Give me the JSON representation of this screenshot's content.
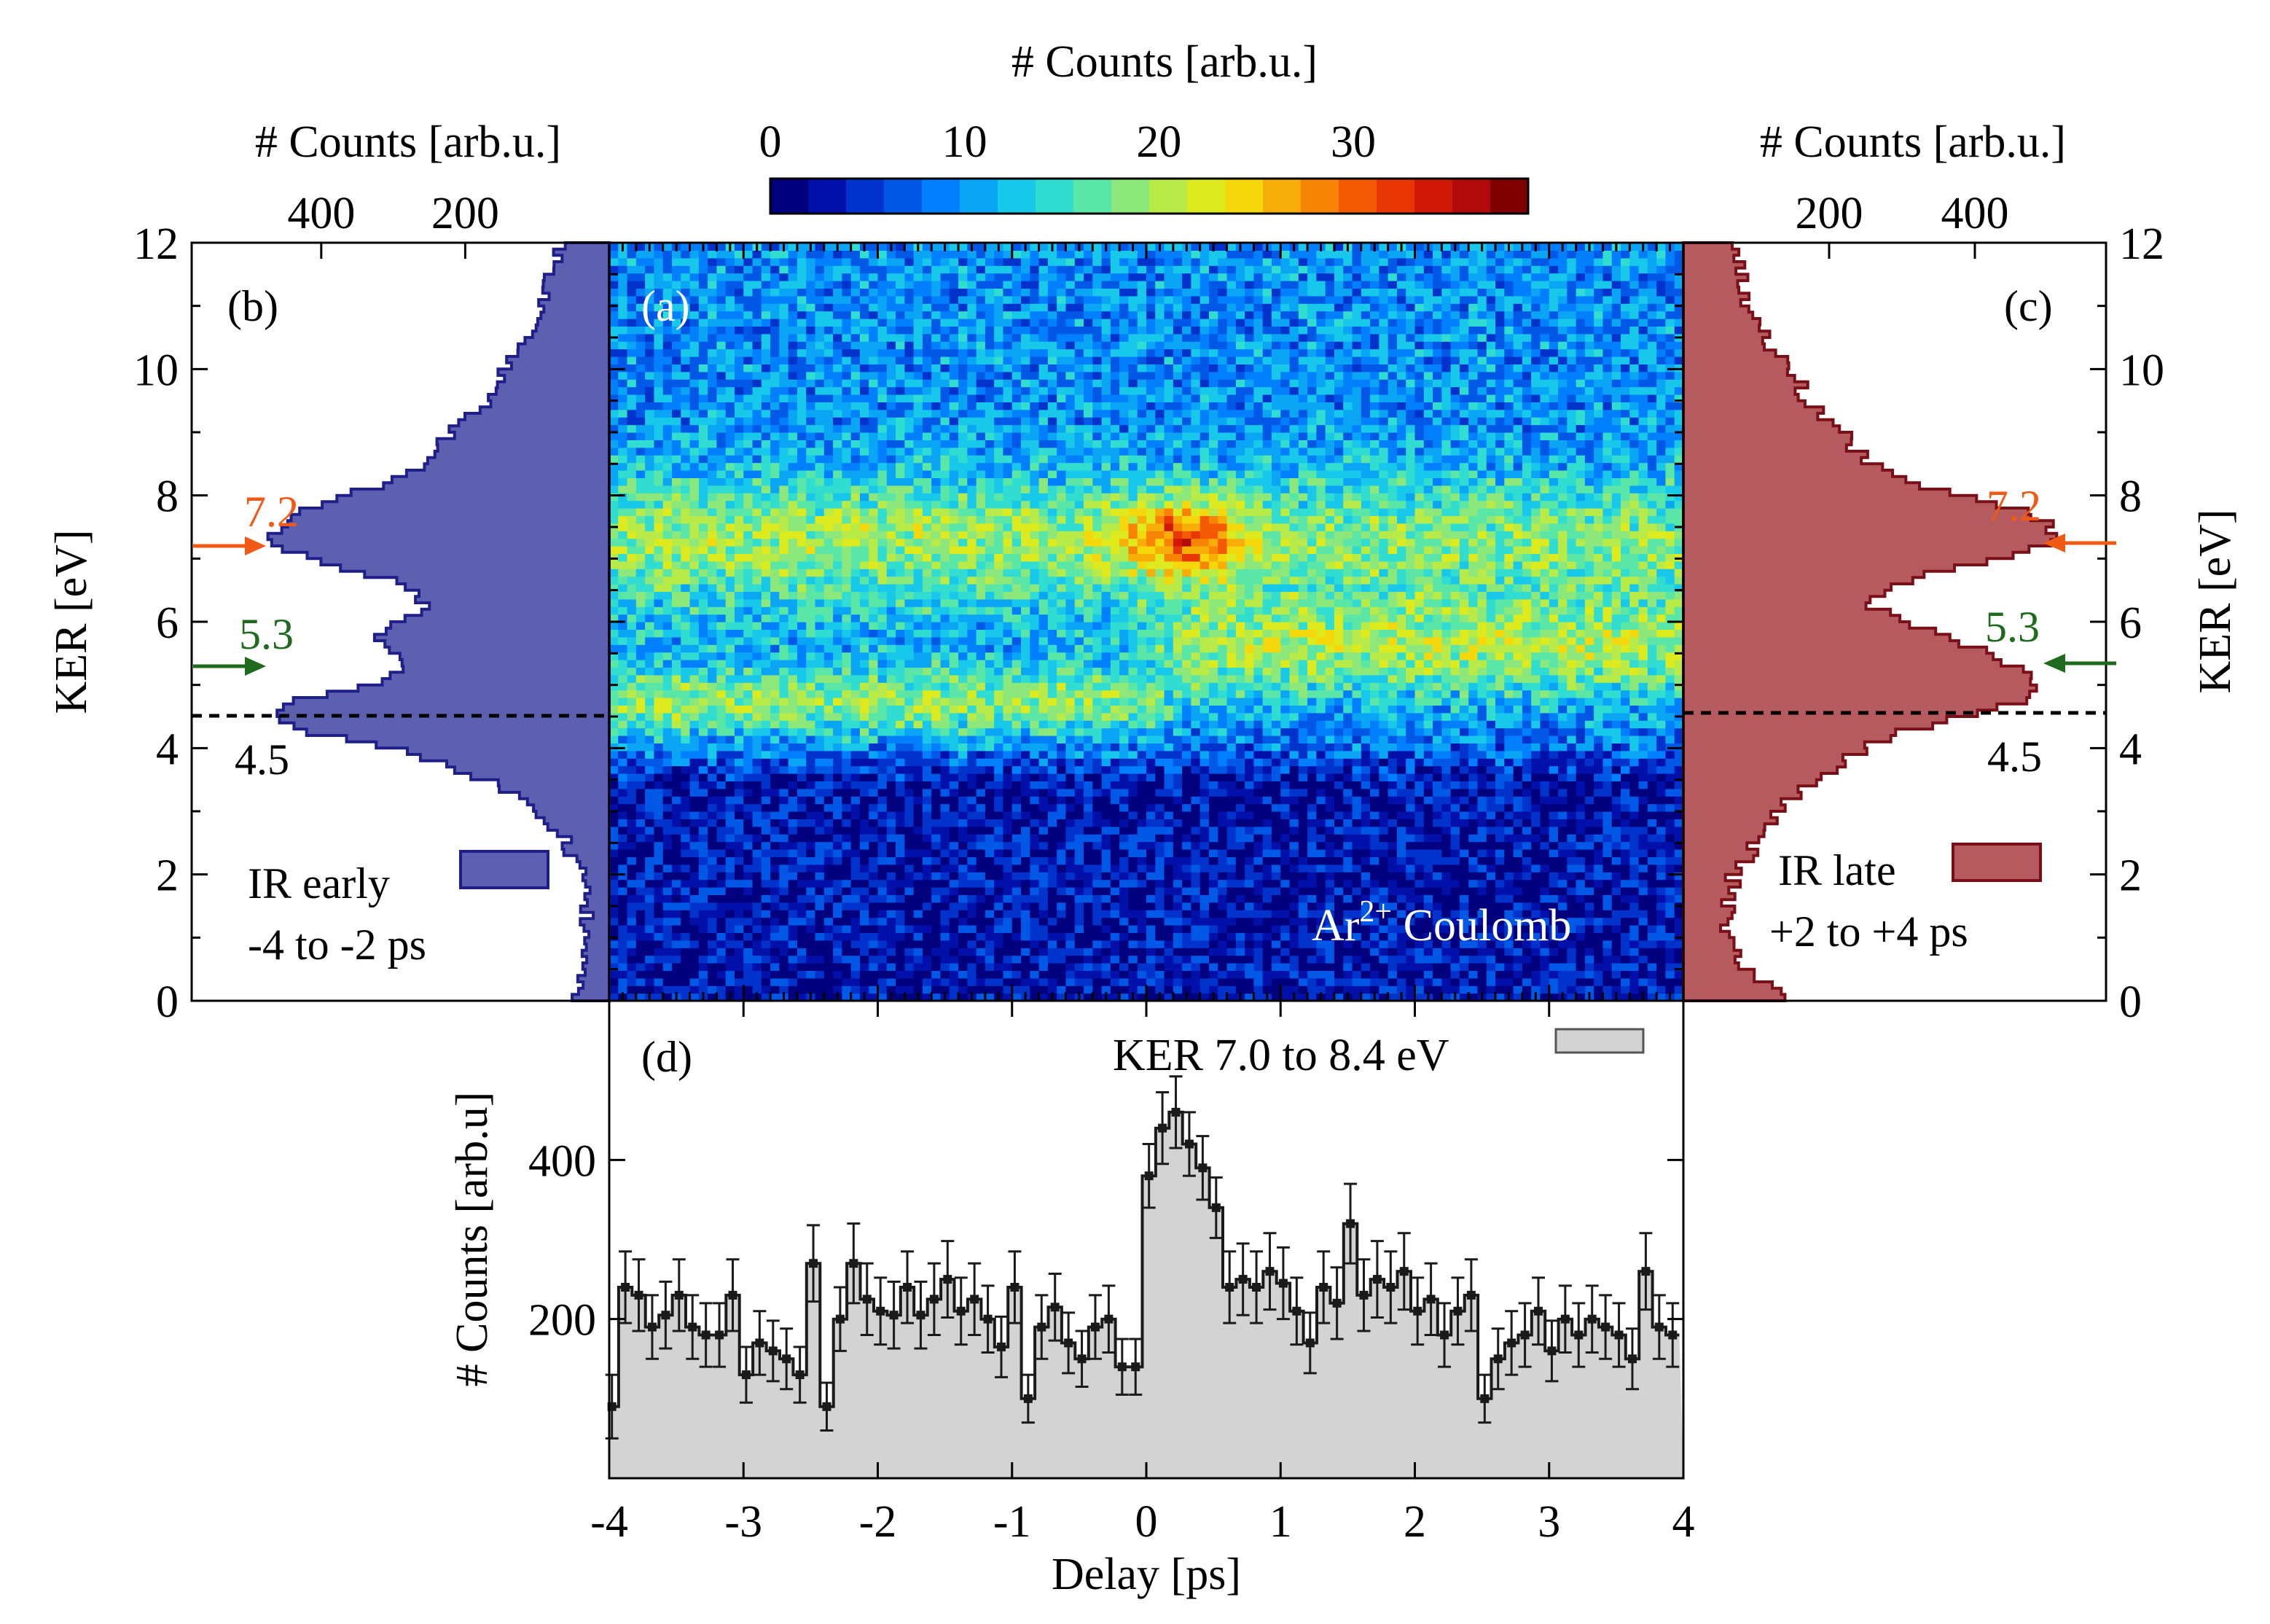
{
  "colors": {
    "early_fill": "#5d5fb0",
    "early_edge": "#1f1f8a",
    "late_fill": "#b55a5e",
    "late_edge": "#7a0f17",
    "marker_72": "#f05a14",
    "marker_53": "#1e6b1e",
    "lineout_fill": "#d3d3d3",
    "points": "#1a1a1a"
  },
  "colormap": [
    "#00007f",
    "#0010a8",
    "#0032cc",
    "#0058e6",
    "#0080ff",
    "#0aa6f5",
    "#18c8ea",
    "#30ddd0",
    "#5ae6a6",
    "#8ce87a",
    "#b8ea48",
    "#dcea1e",
    "#f4d80c",
    "#f8ae08",
    "#f88406",
    "#f45a04",
    "#e83604",
    "#d01806",
    "#b00a0a",
    "#7f0000"
  ],
  "colorbar": {
    "label": "# Counts [arb.u.]",
    "ticks": [
      "0",
      "10",
      "20",
      "30"
    ],
    "tick_values": [
      0,
      10,
      20,
      30
    ],
    "range": [
      0,
      39
    ]
  },
  "panel_a": {
    "label": "(a)",
    "annotation_prefix": "Ar",
    "annotation_sup": "2+",
    "annotation_suffix": " Coulomb",
    "x_range": [
      -4,
      4
    ],
    "y_range": [
      0,
      12
    ]
  },
  "panel_b": {
    "label": "(b)",
    "top_axis_label": "# Counts [arb.u.]",
    "top_ticks": [
      "400",
      "200"
    ],
    "top_tick_values": [
      400,
      200
    ],
    "y_label": "KER [eV]",
    "y_ticks": [
      "0",
      "2",
      "4",
      "6",
      "8",
      "10",
      "12"
    ],
    "legend_line1": "IR early",
    "legend_line2": "-4 to -2 ps",
    "marker_72": "7.2",
    "marker_53": "5.3",
    "marker_45": "4.5"
  },
  "panel_c": {
    "label": "(c)",
    "top_axis_label": "# Counts [arb.u.]",
    "top_ticks": [
      "200",
      "400"
    ],
    "top_tick_values": [
      200,
      400
    ],
    "y_label": "KER [eV]",
    "y_ticks": [
      "0",
      "2",
      "4",
      "6",
      "8",
      "10",
      "12"
    ],
    "legend_line1": "IR late",
    "legend_line2": "+2 to +4 ps",
    "marker_72": "7.2",
    "marker_53": "5.3",
    "marker_45": "4.5"
  },
  "panel_d": {
    "label": "(d)",
    "legend": "KER 7.0 to 8.4 eV",
    "x_label": "Delay [ps]",
    "y_label": "# Counts [arb.u]",
    "x_ticks": [
      "-4",
      "-3",
      "-2",
      "-1",
      "0",
      "1",
      "2",
      "3",
      "4"
    ],
    "y_ticks": [
      "200",
      "400"
    ],
    "y_tick_values": [
      200,
      400
    ]
  },
  "chart_data": [
    {
      "type": "heatmap",
      "panel": "(a)",
      "x_range": [
        -4,
        4
      ],
      "y_range": [
        0,
        12
      ],
      "value_range": [
        0,
        39
      ],
      "description_note": "KER vs delay map; bands at ~7.2 eV and ~5.3 eV, enhanced near 0.2 ps at 7.2 eV"
    },
    {
      "type": "area",
      "panel": "(b)",
      "series_name": "IR early",
      "x_label": "KER [eV]",
      "ker": [
        0,
        0.5,
        1,
        1.5,
        2,
        2.5,
        3,
        3.5,
        4,
        4.25,
        4.5,
        4.75,
        5,
        5.25,
        5.5,
        5.75,
        6,
        6.25,
        6.5,
        6.75,
        7,
        7.25,
        7.5,
        7.75,
        8,
        8.25,
        8.5,
        8.75,
        9,
        9.25,
        9.5,
        10,
        10.5,
        11,
        11.5,
        12
      ],
      "counts": [
        60,
        30,
        28,
        30,
        40,
        60,
        100,
        170,
        300,
        420,
        460,
        440,
        330,
        290,
        300,
        320,
        290,
        250,
        270,
        330,
        420,
        470,
        460,
        430,
        360,
        300,
        250,
        240,
        220,
        190,
        170,
        150,
        110,
        90,
        80,
        70
      ],
      "xlim": [
        0,
        580
      ]
    },
    {
      "type": "area",
      "panel": "(c)",
      "series_name": "IR late",
      "x_label": "KER [eV]",
      "ker": [
        0,
        0.5,
        1,
        1.5,
        2,
        2.5,
        3,
        3.5,
        4,
        4.25,
        4.5,
        4.75,
        5,
        5.25,
        5.5,
        5.75,
        6,
        6.25,
        6.5,
        6.75,
        7,
        7.25,
        7.5,
        7.75,
        8,
        8.25,
        8.5,
        8.75,
        9,
        9.25,
        9.5,
        10,
        10.5,
        11,
        11.5,
        12
      ],
      "counts": [
        150,
        80,
        60,
        60,
        70,
        100,
        130,
        180,
        250,
        300,
        390,
        460,
        490,
        460,
        420,
        360,
        300,
        260,
        270,
        330,
        430,
        500,
        510,
        470,
        380,
        300,
        260,
        230,
        220,
        190,
        170,
        150,
        110,
        90,
        80,
        70
      ],
      "xlim": [
        0,
        580
      ]
    },
    {
      "type": "scatter",
      "panel": "(d)",
      "series_name": "KER 7.0 to 8.4 eV",
      "x": [
        -3.98,
        -3.88,
        -3.78,
        -3.68,
        -3.58,
        -3.48,
        -3.38,
        -3.28,
        -3.18,
        -3.08,
        -2.98,
        -2.88,
        -2.78,
        -2.68,
        -2.58,
        -2.48,
        -2.38,
        -2.28,
        -2.18,
        -2.08,
        -1.98,
        -1.88,
        -1.78,
        -1.68,
        -1.58,
        -1.48,
        -1.38,
        -1.28,
        -1.18,
        -1.08,
        -0.98,
        -0.88,
        -0.78,
        -0.68,
        -0.58,
        -0.48,
        -0.38,
        -0.28,
        -0.18,
        -0.08,
        0.02,
        0.12,
        0.22,
        0.32,
        0.42,
        0.52,
        0.62,
        0.72,
        0.82,
        0.92,
        1.02,
        1.12,
        1.22,
        1.32,
        1.42,
        1.52,
        1.62,
        1.72,
        1.82,
        1.92,
        2.02,
        2.12,
        2.22,
        2.32,
        2.42,
        2.52,
        2.62,
        2.72,
        2.82,
        2.92,
        3.02,
        3.12,
        3.22,
        3.32,
        3.42,
        3.52,
        3.62,
        3.72,
        3.82,
        3.92
      ],
      "y": [
        90,
        240,
        230,
        190,
        205,
        230,
        190,
        180,
        180,
        230,
        130,
        170,
        160,
        150,
        130,
        270,
        90,
        200,
        270,
        225,
        210,
        205,
        240,
        205,
        225,
        250,
        210,
        225,
        200,
        165,
        240,
        100,
        190,
        215,
        170,
        150,
        190,
        200,
        140,
        140,
        380,
        440,
        460,
        420,
        390,
        340,
        240,
        250,
        240,
        260,
        245,
        210,
        170,
        240,
        220,
        320,
        230,
        250,
        240,
        260,
        210,
        225,
        180,
        210,
        230,
        100,
        150,
        170,
        180,
        210,
        160,
        200,
        180,
        200,
        190,
        180,
        150,
        260,
        190,
        180
      ],
      "error": [
        40,
        45,
        45,
        40,
        42,
        45,
        40,
        40,
        40,
        45,
        35,
        40,
        38,
        38,
        35,
        48,
        30,
        40,
        50,
        45,
        42,
        42,
        45,
        42,
        45,
        48,
        42,
        45,
        42,
        38,
        45,
        30,
        40,
        42,
        38,
        35,
        40,
        42,
        35,
        35,
        40,
        45,
        45,
        40,
        40,
        38,
        45,
        45,
        45,
        48,
        45,
        42,
        38,
        45,
        45,
        50,
        45,
        48,
        45,
        48,
        42,
        45,
        40,
        42,
        45,
        30,
        38,
        40,
        40,
        42,
        38,
        42,
        40,
        42,
        40,
        40,
        38,
        48,
        40,
        40
      ],
      "xlim": [
        -4,
        4
      ],
      "ylim": [
        0,
        600
      ]
    }
  ]
}
